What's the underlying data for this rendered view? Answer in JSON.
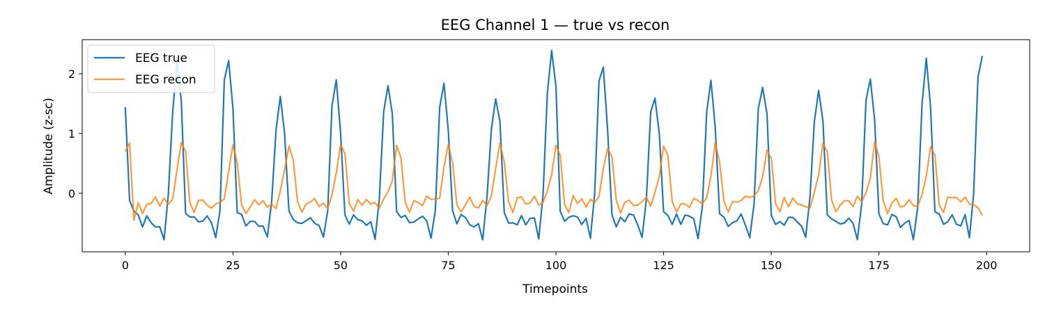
{
  "chart_data": {
    "type": "line",
    "title": "EEG Channel 1 — true vs recon",
    "xlabel": "Timepoints",
    "ylabel": "Amplitude (z-sc)",
    "xlim": [
      -10,
      210
    ],
    "ylim": [
      -0.98,
      2.57
    ],
    "xticks": [
      0,
      25,
      50,
      75,
      100,
      125,
      150,
      175,
      200
    ],
    "yticks": [
      0,
      1,
      2
    ],
    "legend_placement": "upper-left",
    "grid": false,
    "series": [
      {
        "name": "EEG true",
        "color": "#1f77b4",
        "peak_period": 12.45,
        "peaks": [
          [
            12,
            2.2
          ],
          [
            24,
            2.22
          ],
          [
            36,
            1.62
          ],
          [
            49,
            1.9
          ],
          [
            61,
            1.8
          ],
          [
            74,
            1.84
          ],
          [
            86,
            1.58
          ],
          [
            99,
            2.39
          ],
          [
            111,
            2.11
          ],
          [
            123,
            1.59
          ],
          [
            136,
            1.89
          ],
          [
            148,
            1.77
          ],
          [
            161,
            1.72
          ],
          [
            173,
            1.91
          ],
          [
            186,
            2.26
          ],
          [
            199,
            2.3
          ]
        ],
        "start_value": 1.44,
        "baseline_range": [
          -0.78,
          -0.2
        ]
      },
      {
        "name": "EEG recon",
        "color": "#ff7f0e",
        "peak_period": 12.45,
        "peaks": [
          [
            1,
            0.84
          ],
          [
            13,
            0.85
          ],
          [
            25,
            0.81
          ],
          [
            38,
            0.79
          ],
          [
            50,
            0.81
          ],
          [
            63,
            0.8
          ],
          [
            75,
            0.82
          ],
          [
            87,
            0.84
          ],
          [
            100,
            0.8
          ],
          [
            112,
            0.75
          ],
          [
            125,
            0.79
          ],
          [
            137,
            0.85
          ],
          [
            149,
            0.72
          ],
          [
            162,
            0.84
          ],
          [
            174,
            0.86
          ],
          [
            187,
            0.78
          ]
        ],
        "start_value": 0.7,
        "end_value": -0.37,
        "baseline_range": [
          -0.45,
          0.1
        ]
      }
    ]
  }
}
